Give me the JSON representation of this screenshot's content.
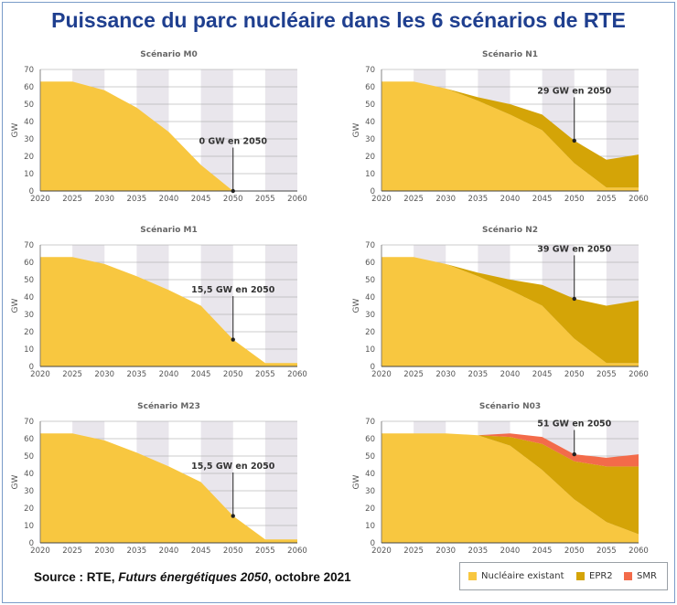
{
  "title": "Puissance du parc nucléaire dans les 6 scénarios de RTE",
  "source": {
    "prefix": "Source : RTE, ",
    "italic": "Futurs énergétiques 2050",
    "suffix": ", octobre 2021"
  },
  "legend": [
    {
      "label": "Nucléaire existant",
      "color": "#f8c740"
    },
    {
      "label": "EPR2",
      "color": "#d4a407"
    },
    {
      "label": "SMR",
      "color": "#f36b4a"
    }
  ],
  "colors": {
    "existing": "#f8c740",
    "epr2": "#d4a407",
    "smr": "#f36b4a",
    "band": "#e9e6ec",
    "grid": "#9e9e9e"
  },
  "chart_data": [
    {
      "type": "area",
      "title": "Scénario M0",
      "ylabel": "GW",
      "x": [
        2020,
        2025,
        2030,
        2035,
        2040,
        2045,
        2050,
        2055,
        2060
      ],
      "xlim": [
        2020,
        2060
      ],
      "ylim": [
        0,
        70
      ],
      "yticks": [
        0,
        10,
        20,
        30,
        40,
        50,
        60,
        70
      ],
      "series": [
        {
          "name": "Nucléaire existant",
          "values": [
            63,
            63,
            58,
            48,
            34,
            15,
            0,
            0,
            0
          ]
        },
        {
          "name": "EPR2",
          "values": [
            0,
            0,
            0,
            0,
            0,
            0,
            0,
            0,
            0
          ]
        },
        {
          "name": "SMR",
          "values": [
            0,
            0,
            0,
            0,
            0,
            0,
            0,
            0,
            0
          ]
        }
      ],
      "annotation": {
        "text": "0 GW en 2050",
        "x": 2050,
        "y": 0
      }
    },
    {
      "type": "area",
      "title": "Scénario N1",
      "ylabel": "GW",
      "x": [
        2020,
        2025,
        2030,
        2035,
        2040,
        2045,
        2050,
        2055,
        2060
      ],
      "xlim": [
        2020,
        2060
      ],
      "ylim": [
        0,
        70
      ],
      "yticks": [
        0,
        10,
        20,
        30,
        40,
        50,
        60,
        70
      ],
      "series": [
        {
          "name": "Nucléaire existant",
          "values": [
            63,
            63,
            59,
            52,
            44,
            35,
            16,
            2,
            2
          ]
        },
        {
          "name": "EPR2",
          "values": [
            0,
            0,
            0,
            2,
            6,
            9,
            13,
            16,
            19
          ]
        },
        {
          "name": "SMR",
          "values": [
            0,
            0,
            0,
            0,
            0,
            0,
            0,
            0,
            0
          ]
        }
      ],
      "annotation": {
        "text": "29 GW en 2050",
        "x": 2050,
        "y": 29
      }
    },
    {
      "type": "area",
      "title": "Scénario M1",
      "ylabel": "GW",
      "x": [
        2020,
        2025,
        2030,
        2035,
        2040,
        2045,
        2050,
        2055,
        2060
      ],
      "xlim": [
        2020,
        2060
      ],
      "ylim": [
        0,
        70
      ],
      "yticks": [
        0,
        10,
        20,
        30,
        40,
        50,
        60,
        70
      ],
      "series": [
        {
          "name": "Nucléaire existant",
          "values": [
            63,
            63,
            59,
            52,
            44,
            35,
            15.5,
            2,
            2
          ]
        },
        {
          "name": "EPR2",
          "values": [
            0,
            0,
            0,
            0,
            0,
            0,
            0,
            0,
            0
          ]
        },
        {
          "name": "SMR",
          "values": [
            0,
            0,
            0,
            0,
            0,
            0,
            0,
            0,
            0
          ]
        }
      ],
      "annotation": {
        "text": "15,5 GW en 2050",
        "x": 2050,
        "y": 15.5
      }
    },
    {
      "type": "area",
      "title": "Scénario N2",
      "ylabel": "GW",
      "x": [
        2020,
        2025,
        2030,
        2035,
        2040,
        2045,
        2050,
        2055,
        2060
      ],
      "xlim": [
        2020,
        2060
      ],
      "ylim": [
        0,
        70
      ],
      "yticks": [
        0,
        10,
        20,
        30,
        40,
        50,
        60,
        70
      ],
      "series": [
        {
          "name": "Nucléaire existant",
          "values": [
            63,
            63,
            59,
            52,
            44,
            35,
            16,
            2,
            2
          ]
        },
        {
          "name": "EPR2",
          "values": [
            0,
            0,
            0,
            2,
            6,
            12,
            23,
            33,
            36
          ]
        },
        {
          "name": "SMR",
          "values": [
            0,
            0,
            0,
            0,
            0,
            0,
            0,
            0,
            0
          ]
        }
      ],
      "annotation": {
        "text": "39 GW en 2050",
        "x": 2050,
        "y": 39
      }
    },
    {
      "type": "area",
      "title": "Scénario M23",
      "ylabel": "GW",
      "x": [
        2020,
        2025,
        2030,
        2035,
        2040,
        2045,
        2050,
        2055,
        2060
      ],
      "xlim": [
        2020,
        2060
      ],
      "ylim": [
        0,
        70
      ],
      "yticks": [
        0,
        10,
        20,
        30,
        40,
        50,
        60,
        70
      ],
      "series": [
        {
          "name": "Nucléaire existant",
          "values": [
            63,
            63,
            59,
            52,
            44,
            35,
            15.5,
            2,
            2
          ]
        },
        {
          "name": "EPR2",
          "values": [
            0,
            0,
            0,
            0,
            0,
            0,
            0,
            0,
            0
          ]
        },
        {
          "name": "SMR",
          "values": [
            0,
            0,
            0,
            0,
            0,
            0,
            0,
            0,
            0
          ]
        }
      ],
      "annotation": {
        "text": "15,5 GW en 2050",
        "x": 2050,
        "y": 15.5
      }
    },
    {
      "type": "area",
      "title": "Scénario N03",
      "ylabel": "GW",
      "x": [
        2020,
        2025,
        2030,
        2035,
        2040,
        2045,
        2050,
        2055,
        2060
      ],
      "xlim": [
        2020,
        2060
      ],
      "ylim": [
        0,
        70
      ],
      "yticks": [
        0,
        10,
        20,
        30,
        40,
        50,
        60,
        70
      ],
      "series": [
        {
          "name": "Nucléaire existant",
          "values": [
            63,
            63,
            63,
            62,
            56,
            42,
            25,
            12,
            5
          ]
        },
        {
          "name": "EPR2",
          "values": [
            0,
            0,
            0,
            0,
            5,
            15,
            22,
            32,
            39
          ]
        },
        {
          "name": "SMR",
          "values": [
            0,
            0,
            0,
            0,
            2,
            4,
            4,
            5,
            7
          ]
        }
      ],
      "annotation": {
        "text": "51 GW en 2050",
        "x": 2050,
        "y": 51
      }
    }
  ]
}
